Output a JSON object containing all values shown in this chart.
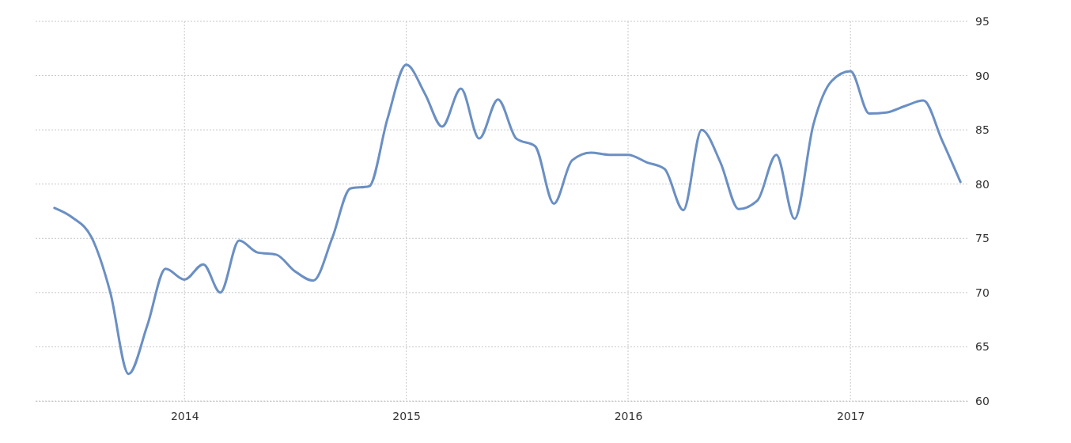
{
  "chart_data": {
    "type": "line",
    "x": [
      "2013-06",
      "2013-07",
      "2013-08",
      "2013-09",
      "2013-10",
      "2013-11",
      "2013-12",
      "2014-01",
      "2014-02",
      "2014-03",
      "2014-04",
      "2014-05",
      "2014-06",
      "2014-07",
      "2014-08",
      "2014-09",
      "2014-10",
      "2014-11",
      "2014-12",
      "2015-01",
      "2015-02",
      "2015-03",
      "2015-04",
      "2015-05",
      "2015-06",
      "2015-07",
      "2015-08",
      "2015-09",
      "2015-10",
      "2015-11",
      "2015-12",
      "2016-01",
      "2016-02",
      "2016-03",
      "2016-04",
      "2016-05",
      "2016-06",
      "2016-07",
      "2016-08",
      "2016-09",
      "2016-10",
      "2016-11",
      "2016-12",
      "2017-01",
      "2017-02",
      "2017-03",
      "2017-04",
      "2017-05",
      "2017-06",
      "2017-07"
    ],
    "series": [
      {
        "color": "#6a8fc4",
        "values": [
          77.8,
          76.9,
          75.1,
          70,
          62.5,
          67,
          72.2,
          71.2,
          72.6,
          70,
          74.8,
          73.7,
          73.5,
          72,
          71.1,
          75,
          79.6,
          79.8,
          86,
          91,
          88.3,
          85.3,
          88.8,
          84.2,
          87.8,
          84.2,
          83.5,
          78.2,
          82.2,
          82.9,
          82.7,
          82.7,
          82,
          81.4,
          77.6,
          85,
          82,
          77.7,
          78.5,
          82.7,
          76.8,
          85.5,
          89.5,
          90.4,
          86.5,
          86.6,
          87.2,
          87.7,
          84,
          80.2
        ]
      }
    ],
    "xlim": [
      "2013-05-01",
      "2017-07-15"
    ],
    "xticks": [
      {
        "value": "2014-01",
        "label": "2014"
      },
      {
        "value": "2015-01",
        "label": "2015"
      },
      {
        "value": "2016-01",
        "label": "2016"
      },
      {
        "value": "2017-01",
        "label": "2017"
      }
    ],
    "ylim": [
      60,
      95
    ],
    "yticks": [
      60,
      65,
      70,
      75,
      80,
      85,
      90,
      95
    ],
    "grid": true,
    "marker": "none",
    "line_style": "solid"
  }
}
